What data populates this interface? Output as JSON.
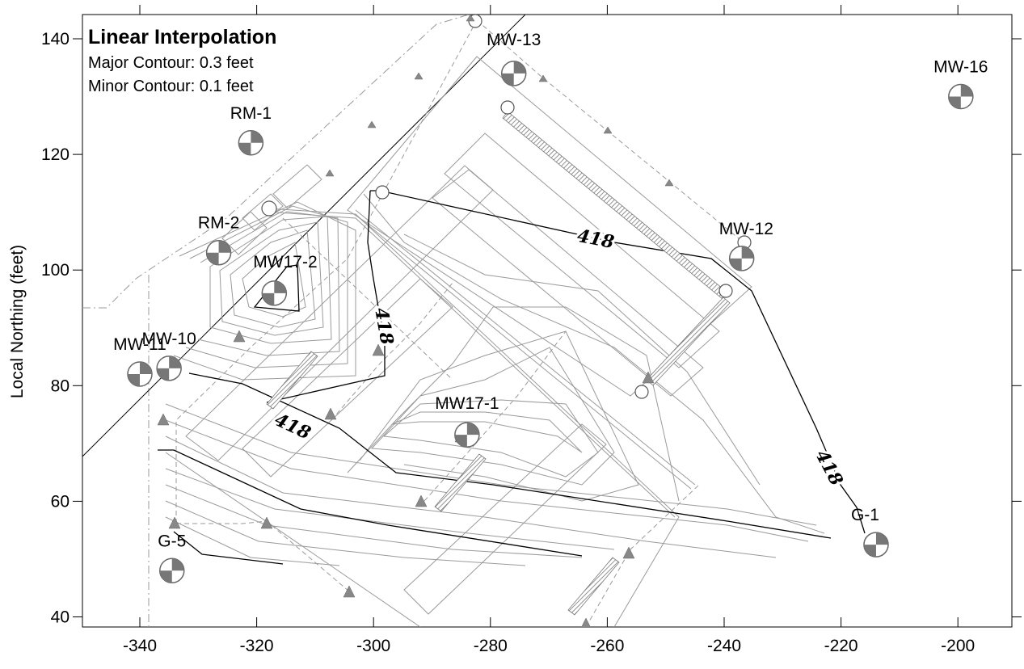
{
  "legend": {
    "title": "Linear Interpolation",
    "major": "Major Contour: 0.3 feet",
    "minor": "Minor Contour: 0.1 feet"
  },
  "axes": {
    "ylabel": "Local Northing (feet)",
    "xlim": [
      -350,
      -190
    ],
    "ylim": [
      38,
      143
    ],
    "xticks": [
      "-340",
      "-320",
      "-300",
      "-280",
      "-260",
      "-240",
      "-220",
      "-200"
    ],
    "yticks": [
      "40",
      "60",
      "80",
      "100",
      "120",
      "140"
    ]
  },
  "wells": [
    {
      "name": "MW-13",
      "x": -276,
      "y": 134
    },
    {
      "name": "MW-16",
      "x": -199.5,
      "y": 130
    },
    {
      "name": "RM-1",
      "x": -321,
      "y": 122
    },
    {
      "name": "RM-2",
      "x": -326.5,
      "y": 103
    },
    {
      "name": "MW17-2",
      "x": -317,
      "y": 96
    },
    {
      "name": "MW-12",
      "x": -237,
      "y": 102
    },
    {
      "name": "MW-11",
      "x": -340,
      "y": 82
    },
    {
      "name": "MW-10",
      "x": -335,
      "y": 83
    },
    {
      "name": "MW17-1",
      "x": -284,
      "y": 71.5
    },
    {
      "name": "G-1",
      "x": -214,
      "y": 52.5
    },
    {
      "name": "G-5",
      "x": -334.5,
      "y": 48
    }
  ],
  "contour_labels": [
    "418",
    "418",
    "418",
    "418"
  ],
  "colors": {
    "well_fill": "#777777",
    "triangle": "#888888",
    "minor_contour": "#9a9a9a",
    "major_contour": "#000000",
    "site_line": "#9a9a9a"
  }
}
